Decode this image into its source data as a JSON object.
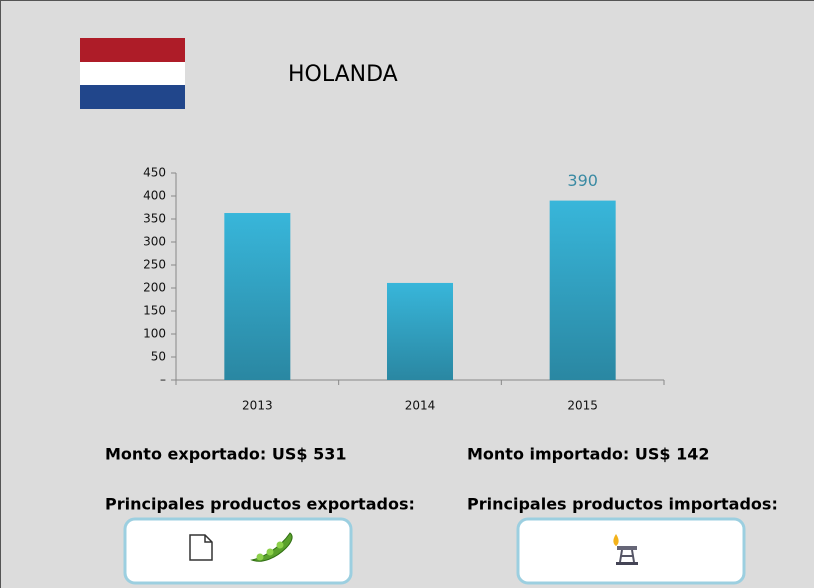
{
  "header": {
    "title": "HOLANDA"
  },
  "chart_data": {
    "type": "bar",
    "categories": [
      "2013",
      "2014",
      "2015"
    ],
    "values": [
      363,
      211,
      390
    ],
    "value_labels": [
      null,
      null,
      "390"
    ],
    "ylim": [
      0,
      450
    ],
    "yticks": [
      {
        "value": 0,
        "label": "–"
      },
      50,
      100,
      150,
      200,
      250,
      300,
      350,
      400,
      450
    ],
    "color": "#34aed0",
    "grid": false
  },
  "summary": {
    "exported_amount": "Monto exportado: US$ 531",
    "imported_amount": "Monto importado: US$ 142",
    "exported_products": "Principales productos exportados:",
    "imported_products": "Principales productos importados:"
  }
}
